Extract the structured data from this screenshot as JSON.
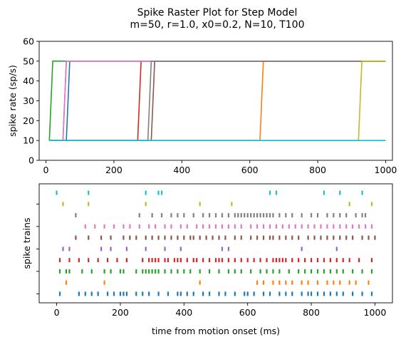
{
  "figure": {
    "title_line1": "Spike Raster Plot for Step Model",
    "title_line2": "m=50, r=1.0, x0=0.2, N=10, T100"
  },
  "colors": [
    "#1f77b4",
    "#ff7f0e",
    "#2ca02c",
    "#d62728",
    "#9467bd",
    "#8c564b",
    "#e377c2",
    "#7f7f7f",
    "#bcbd22",
    "#17becf"
  ],
  "chart_data": [
    {
      "type": "line",
      "ylabel": "spike rate (sp/s)",
      "xlim": [
        -20,
        1020
      ],
      "ylim": [
        0,
        60
      ],
      "x_ticks": [
        0,
        200,
        400,
        600,
        800,
        1000
      ],
      "x_tick_labels": [
        "0",
        "200",
        "400",
        "600",
        "800",
        "1000"
      ],
      "y_ticks": [
        0,
        10,
        20,
        30,
        40,
        50,
        60
      ],
      "y_tick_labels": [
        "0",
        "10",
        "20",
        "30",
        "40",
        "50",
        "60"
      ],
      "rate_low": 10,
      "rate_high": 50,
      "x_start": 10,
      "x_end": 1000,
      "step_width": 10,
      "series": [
        {
          "step_time": 60
        },
        {
          "step_time": 630
        },
        {
          "step_time": 10
        },
        {
          "step_time": 270
        },
        {
          "step_time": 50
        },
        {
          "step_time": 310
        },
        {
          "step_time": 50
        },
        {
          "step_time": 300
        },
        {
          "step_time": 920
        },
        {
          "step_time": 1000
        }
      ]
    },
    {
      "type": "scatter",
      "xlabel": "time from motion onset (ms)",
      "ylabel": "spike trains",
      "xlim": [
        -55,
        1055
      ],
      "ylim": [
        -0.8,
        9.8
      ],
      "x_ticks": [
        0,
        200,
        400,
        600,
        800,
        1000
      ],
      "x_tick_labels": [
        "0",
        "200",
        "400",
        "600",
        "800",
        "1000"
      ],
      "y_ticks": [
        0,
        2,
        4,
        6,
        8
      ],
      "y_tick_labels": [
        "",
        "",
        "",
        "",
        ""
      ],
      "trains": [
        {
          "row": 0,
          "spikes": [
            10,
            70,
            90,
            110,
            130,
            160,
            180,
            200,
            210,
            220,
            250,
            270,
            290,
            320,
            350,
            380,
            390,
            410,
            430,
            460,
            480,
            510,
            530,
            560,
            590,
            600,
            620,
            650,
            670,
            700,
            720,
            740,
            770,
            790,
            800,
            820,
            840,
            860,
            880,
            900,
            930,
            960,
            990
          ]
        },
        {
          "row": 1,
          "spikes": [
            30,
            150,
            450,
            630,
            650,
            680,
            700,
            720,
            740,
            770,
            790,
            820,
            850,
            870,
            890,
            920,
            940,
            980
          ]
        },
        {
          "row": 2,
          "spikes": [
            10,
            30,
            40,
            80,
            110,
            150,
            170,
            200,
            210,
            250,
            270,
            280,
            290,
            300,
            310,
            320,
            340,
            360,
            380,
            400,
            420,
            450,
            480,
            510,
            540,
            560,
            580,
            610,
            640,
            660,
            680,
            700,
            730,
            760,
            780,
            800,
            820,
            840,
            860,
            880,
            900,
            930,
            960,
            990
          ]
        },
        {
          "row": 3,
          "spikes": [
            10,
            40,
            70,
            100,
            130,
            160,
            190,
            220,
            270,
            290,
            300,
            310,
            320,
            340,
            350,
            370,
            380,
            390,
            410,
            430,
            440,
            460,
            480,
            500,
            510,
            520,
            540,
            560,
            580,
            600,
            620,
            640,
            660,
            680,
            690,
            700,
            710,
            720,
            740,
            760,
            780,
            800,
            820,
            840,
            860,
            880,
            900,
            920,
            950,
            990
          ]
        },
        {
          "row": 4,
          "spikes": [
            20,
            40,
            140,
            170,
            220,
            280,
            340,
            390,
            520,
            540,
            770,
            880
          ]
        },
        {
          "row": 5,
          "spikes": [
            60,
            100,
            140,
            170,
            210,
            230,
            250,
            280,
            300,
            320,
            340,
            360,
            380,
            400,
            420,
            430,
            450,
            470,
            490,
            510,
            530,
            560,
            580,
            610,
            630,
            650,
            670,
            680,
            700,
            720,
            740,
            760,
            790,
            810,
            830,
            850,
            870,
            890,
            910,
            930,
            960,
            980,
            1000
          ]
        },
        {
          "row": 6,
          "spikes": [
            90,
            120,
            150,
            180,
            210,
            230,
            260,
            290,
            310,
            340,
            360,
            390,
            410,
            440,
            460,
            480,
            500,
            520,
            540,
            560,
            580,
            610,
            630,
            650,
            670,
            690,
            710,
            730,
            750,
            770,
            790,
            810,
            830,
            850,
            870,
            890,
            910,
            930,
            950,
            970,
            990
          ]
        },
        {
          "row": 7,
          "spikes": [
            60,
            260,
            300,
            330,
            360,
            380,
            400,
            430,
            460,
            480,
            500,
            520,
            540,
            560,
            570,
            580,
            590,
            600,
            610,
            620,
            630,
            640,
            650,
            660,
            670,
            680,
            700,
            720,
            740,
            770,
            800,
            820,
            850,
            870,
            890,
            910,
            940,
            960,
            970
          ]
        },
        {
          "row": 8,
          "spikes": [
            20,
            100,
            280,
            450,
            550,
            920,
            990
          ]
        },
        {
          "row": 9,
          "spikes": [
            0,
            100,
            280,
            320,
            330,
            670,
            690,
            840,
            890,
            960
          ]
        }
      ]
    }
  ]
}
